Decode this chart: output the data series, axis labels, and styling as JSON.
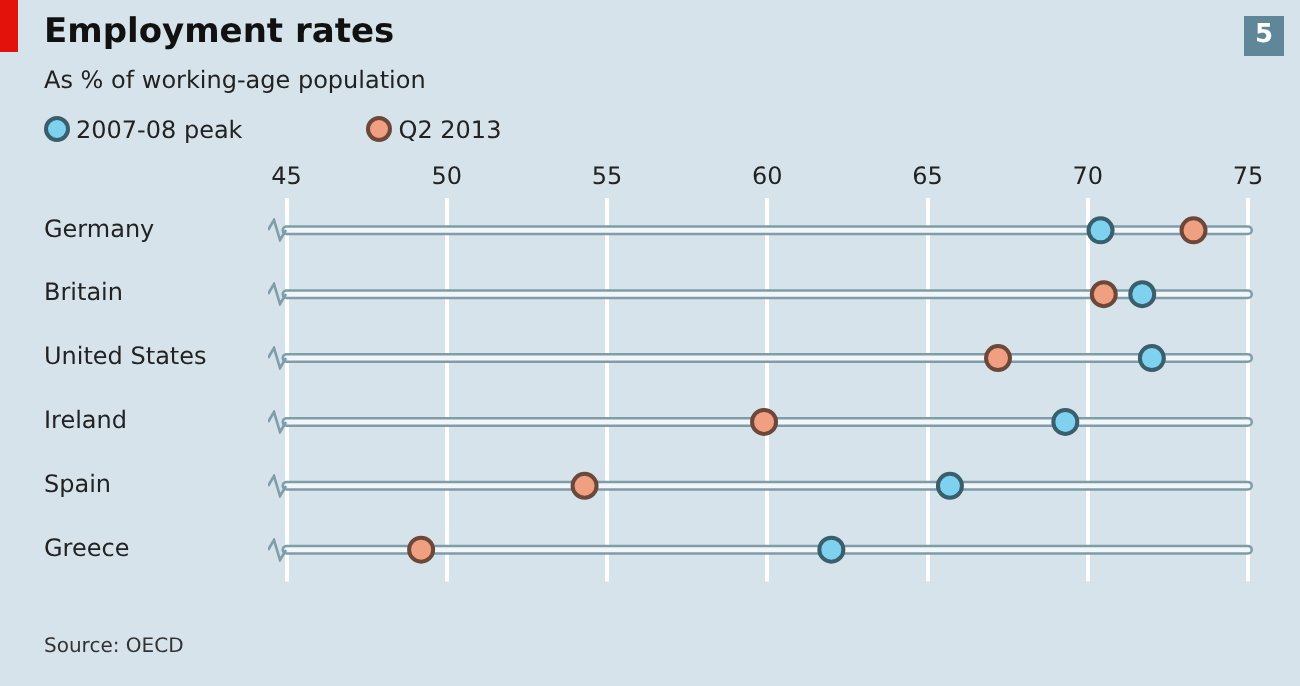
{
  "chart_data": {
    "type": "scatter",
    "title": "Employment rates",
    "subtitle": "As % of working-age population",
    "orientation": "horizontal",
    "categories": [
      "Germany",
      "Britain",
      "United States",
      "Ireland",
      "Spain",
      "Greece"
    ],
    "series": [
      {
        "name": "2007-08 peak",
        "color": "#7fd2ef",
        "values": [
          70.4,
          71.7,
          72.0,
          69.3,
          65.7,
          62.0
        ]
      },
      {
        "name": "Q2 2013",
        "color": "#f0a080",
        "values": [
          73.3,
          70.5,
          67.2,
          59.9,
          54.3,
          49.2
        ]
      }
    ],
    "xlim": [
      45,
      75
    ],
    "xticks": [
      45,
      50,
      55,
      60,
      65,
      70,
      75
    ],
    "grid": "x",
    "legend": "top left",
    "marker": "circle",
    "annotations": [
      "Source: OECD",
      "5"
    ]
  }
}
